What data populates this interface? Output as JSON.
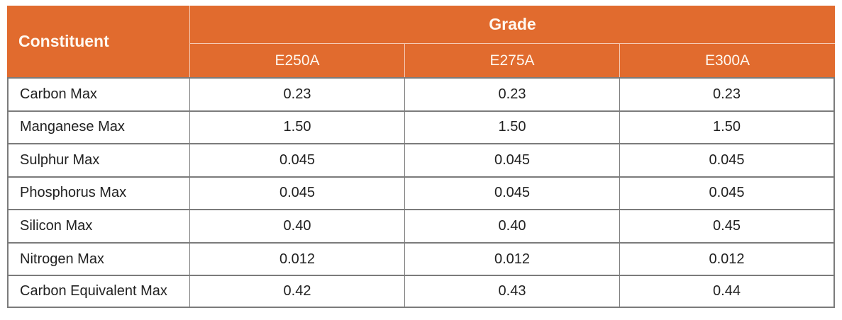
{
  "chart_data": {
    "type": "table",
    "group_header": "Grade",
    "columns": [
      "Constituent",
      "E250A",
      "E275A",
      "E300A"
    ],
    "rows": [
      [
        "Carbon Max",
        "0.23",
        "0.23",
        "0.23"
      ],
      [
        "Manganese Max",
        "1.50",
        "1.50",
        "1.50"
      ],
      [
        "Sulphur Max",
        "0.045",
        "0.045",
        "0.045"
      ],
      [
        "Phosphorus Max",
        "0.045",
        "0.045",
        "0.045"
      ],
      [
        "Silicon Max",
        "0.40",
        "0.40",
        "0.45"
      ],
      [
        "Nitrogen Max",
        "0.012",
        "0.012",
        "0.012"
      ],
      [
        "Carbon Equivalent Max",
        "0.42",
        "0.43",
        "0.44"
      ]
    ]
  },
  "colors": {
    "header_bg": "#E16B2E",
    "header_text": "#FFF8F0",
    "body_text": "#212121",
    "grid_border": "#7B7B7B"
  }
}
